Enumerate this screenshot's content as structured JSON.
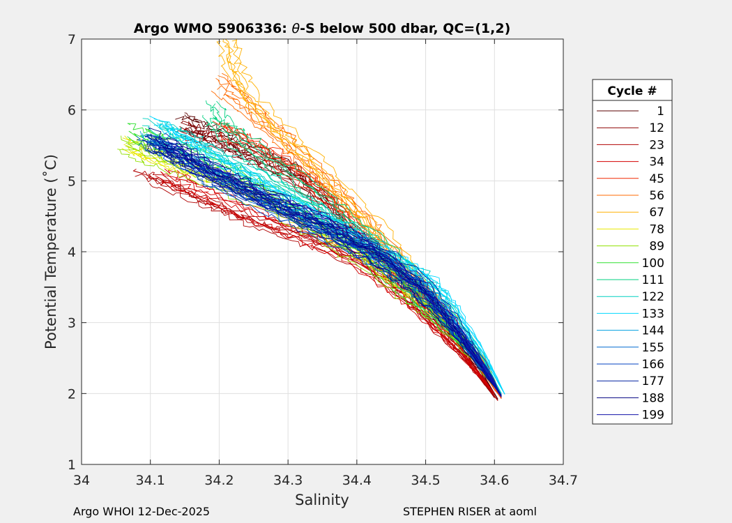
{
  "chart_data": {
    "type": "line",
    "title_prefix": "Argo WMO 5906336: ",
    "title_theta": "θ",
    "title_suffix": "-S below 500 dbar,  QC=(1,2)",
    "xlabel": "Salinity",
    "ylabel": "Potential Temperature (˚C)",
    "xlim": [
      34.0,
      34.7
    ],
    "ylim": [
      1,
      7
    ],
    "xticks": [
      34,
      34.1,
      34.2,
      34.3,
      34.4,
      34.5,
      34.6,
      34.7
    ],
    "xtick_labels": [
      "34",
      "34.1",
      "34.2",
      "34.3",
      "34.4",
      "34.5",
      "34.6",
      "34.7"
    ],
    "yticks": [
      1,
      2,
      3,
      4,
      5,
      6,
      7
    ],
    "ytick_labels": [
      "1",
      "2",
      "3",
      "4",
      "5",
      "6",
      "7"
    ],
    "grid": true,
    "legend_position": "outside-right",
    "legend_title": "Cycle #",
    "series": [
      {
        "name": "1",
        "color": "#5a0000",
        "points": [
          [
            34.15,
            5.82
          ],
          [
            34.17,
            5.72
          ],
          [
            34.2,
            5.6
          ],
          [
            34.23,
            5.45
          ],
          [
            34.27,
            5.28
          ],
          [
            34.31,
            5.1
          ],
          [
            34.36,
            4.68
          ],
          [
            34.42,
            3.98
          ],
          [
            34.48,
            3.45
          ],
          [
            34.53,
            2.95
          ],
          [
            34.57,
            2.45
          ],
          [
            34.605,
            1.92
          ]
        ]
      },
      {
        "name": "12",
        "color": "#8b0000",
        "points": [
          [
            34.14,
            5.78
          ],
          [
            34.17,
            5.66
          ],
          [
            34.21,
            5.52
          ],
          [
            34.25,
            5.36
          ],
          [
            34.29,
            5.18
          ],
          [
            34.34,
            4.78
          ],
          [
            34.41,
            4.02
          ],
          [
            34.47,
            3.5
          ],
          [
            34.52,
            3.0
          ],
          [
            34.56,
            2.5
          ],
          [
            34.6,
            1.94
          ]
        ]
      },
      {
        "name": "23",
        "color": "#b00000",
        "points": [
          [
            34.09,
            5.07
          ],
          [
            34.13,
            4.95
          ],
          [
            34.18,
            4.72
          ],
          [
            34.23,
            4.5
          ],
          [
            34.29,
            4.3
          ],
          [
            34.35,
            4.12
          ],
          [
            34.42,
            3.78
          ],
          [
            34.48,
            3.3
          ],
          [
            34.53,
            2.8
          ],
          [
            34.57,
            2.35
          ],
          [
            34.605,
            1.9
          ]
        ]
      },
      {
        "name": "34",
        "color": "#d40000",
        "points": [
          [
            34.12,
            5.1
          ],
          [
            34.16,
            4.92
          ],
          [
            34.21,
            4.7
          ],
          [
            34.27,
            4.45
          ],
          [
            34.33,
            4.2
          ],
          [
            34.39,
            3.95
          ],
          [
            34.45,
            3.55
          ],
          [
            34.5,
            3.1
          ],
          [
            34.55,
            2.6
          ],
          [
            34.6,
            2.0
          ]
        ]
      },
      {
        "name": "45",
        "color": "#f02800",
        "points": [
          [
            34.2,
            5.75
          ],
          [
            34.23,
            5.6
          ],
          [
            34.27,
            5.38
          ],
          [
            34.31,
            5.12
          ],
          [
            34.35,
            4.82
          ],
          [
            34.38,
            4.5
          ],
          [
            34.42,
            4.08
          ],
          [
            34.47,
            3.55
          ],
          [
            34.52,
            3.05
          ],
          [
            34.57,
            2.5
          ],
          [
            34.61,
            1.93
          ]
        ]
      },
      {
        "name": "56",
        "color": "#ff6a00",
        "points": [
          [
            34.2,
            6.35
          ],
          [
            34.23,
            6.1
          ],
          [
            34.27,
            5.75
          ],
          [
            34.31,
            5.4
          ],
          [
            34.35,
            5.0
          ],
          [
            34.39,
            4.6
          ],
          [
            34.43,
            4.18
          ],
          [
            34.48,
            3.6
          ],
          [
            34.53,
            3.08
          ],
          [
            34.57,
            2.55
          ],
          [
            34.61,
            1.94
          ]
        ]
      },
      {
        "name": "67",
        "color": "#ffb000",
        "points": [
          [
            34.21,
            7.0
          ],
          [
            34.22,
            6.6
          ],
          [
            34.24,
            6.2
          ],
          [
            34.28,
            5.75
          ],
          [
            34.33,
            5.3
          ],
          [
            34.38,
            4.8
          ],
          [
            34.43,
            4.28
          ],
          [
            34.48,
            3.7
          ],
          [
            34.53,
            3.1
          ],
          [
            34.58,
            2.55
          ],
          [
            34.61,
            1.96
          ]
        ]
      },
      {
        "name": "78",
        "color": "#e8e800",
        "points": [
          [
            34.07,
            5.5
          ],
          [
            34.1,
            5.38
          ],
          [
            34.15,
            5.22
          ],
          [
            34.21,
            5.02
          ],
          [
            34.27,
            4.75
          ],
          [
            34.33,
            4.42
          ],
          [
            34.4,
            4.05
          ],
          [
            34.46,
            3.6
          ],
          [
            34.52,
            3.1
          ],
          [
            34.57,
            2.55
          ],
          [
            34.61,
            1.97
          ]
        ]
      },
      {
        "name": "89",
        "color": "#90e000",
        "points": [
          [
            34.06,
            5.52
          ],
          [
            34.1,
            5.4
          ],
          [
            34.15,
            5.2
          ],
          [
            34.21,
            4.98
          ],
          [
            34.28,
            4.68
          ],
          [
            34.35,
            4.3
          ],
          [
            34.41,
            3.95
          ],
          [
            34.47,
            3.5
          ],
          [
            34.52,
            3.05
          ],
          [
            34.57,
            2.52
          ],
          [
            34.61,
            1.97
          ]
        ]
      },
      {
        "name": "100",
        "color": "#30e030",
        "points": [
          [
            34.08,
            5.7
          ],
          [
            34.12,
            5.58
          ],
          [
            34.17,
            5.4
          ],
          [
            34.22,
            5.15
          ],
          [
            34.28,
            4.82
          ],
          [
            34.34,
            4.45
          ],
          [
            34.41,
            4.05
          ],
          [
            34.47,
            3.58
          ],
          [
            34.52,
            3.1
          ],
          [
            34.57,
            2.55
          ],
          [
            34.61,
            1.98
          ]
        ]
      },
      {
        "name": "111",
        "color": "#00d080",
        "points": [
          [
            34.19,
            6.0
          ],
          [
            34.21,
            5.75
          ],
          [
            34.25,
            5.45
          ],
          [
            34.3,
            5.08
          ],
          [
            34.36,
            4.65
          ],
          [
            34.42,
            4.18
          ],
          [
            34.47,
            3.7
          ],
          [
            34.52,
            3.15
          ],
          [
            34.57,
            2.58
          ],
          [
            34.61,
            1.98
          ]
        ]
      },
      {
        "name": "122",
        "color": "#00d0c0",
        "points": [
          [
            34.1,
            5.75
          ],
          [
            34.14,
            5.6
          ],
          [
            34.19,
            5.38
          ],
          [
            34.25,
            5.05
          ],
          [
            34.31,
            4.72
          ],
          [
            34.37,
            4.38
          ],
          [
            34.43,
            4.02
          ],
          [
            34.49,
            3.62
          ],
          [
            34.53,
            3.2
          ],
          [
            34.57,
            2.65
          ],
          [
            34.61,
            2.0
          ]
        ]
      },
      {
        "name": "133",
        "color": "#00d8ff",
        "points": [
          [
            34.11,
            5.8
          ],
          [
            34.15,
            5.55
          ],
          [
            34.2,
            5.25
          ],
          [
            34.26,
            4.95
          ],
          [
            34.32,
            4.62
          ],
          [
            34.38,
            4.3
          ],
          [
            34.44,
            3.98
          ],
          [
            34.5,
            3.62
          ],
          [
            34.54,
            3.2
          ],
          [
            34.58,
            2.62
          ],
          [
            34.615,
            1.99
          ]
        ]
      },
      {
        "name": "144",
        "color": "#00a0e0",
        "points": [
          [
            34.1,
            5.65
          ],
          [
            34.14,
            5.45
          ],
          [
            34.19,
            5.18
          ],
          [
            34.25,
            4.9
          ],
          [
            34.31,
            4.6
          ],
          [
            34.37,
            4.3
          ],
          [
            34.43,
            4.0
          ],
          [
            34.49,
            3.6
          ],
          [
            34.53,
            3.18
          ],
          [
            34.57,
            2.6
          ],
          [
            34.61,
            1.98
          ]
        ]
      },
      {
        "name": "155",
        "color": "#0068d0",
        "points": [
          [
            34.09,
            5.6
          ],
          [
            34.13,
            5.42
          ],
          [
            34.18,
            5.1
          ],
          [
            34.24,
            4.82
          ],
          [
            34.3,
            4.55
          ],
          [
            34.36,
            4.28
          ],
          [
            34.42,
            3.98
          ],
          [
            34.48,
            3.55
          ],
          [
            34.53,
            3.1
          ],
          [
            34.57,
            2.55
          ],
          [
            34.61,
            1.98
          ]
        ]
      },
      {
        "name": "166",
        "color": "#0040c0",
        "points": [
          [
            34.1,
            5.55
          ],
          [
            34.14,
            5.35
          ],
          [
            34.19,
            5.05
          ],
          [
            34.25,
            4.75
          ],
          [
            34.31,
            4.48
          ],
          [
            34.37,
            4.2
          ],
          [
            34.43,
            3.92
          ],
          [
            34.49,
            3.5
          ],
          [
            34.53,
            3.05
          ],
          [
            34.57,
            2.52
          ],
          [
            34.61,
            1.97
          ]
        ]
      },
      {
        "name": "177",
        "color": "#0020a0",
        "points": [
          [
            34.11,
            5.6
          ],
          [
            34.15,
            5.38
          ],
          [
            34.2,
            5.1
          ],
          [
            34.26,
            4.82
          ],
          [
            34.32,
            4.55
          ],
          [
            34.38,
            4.25
          ],
          [
            34.44,
            3.92
          ],
          [
            34.5,
            3.48
          ],
          [
            34.54,
            3.0
          ],
          [
            34.58,
            2.48
          ],
          [
            34.61,
            1.96
          ]
        ]
      },
      {
        "name": "188",
        "color": "#000080",
        "points": [
          [
            34.1,
            5.62
          ],
          [
            34.14,
            5.42
          ],
          [
            34.19,
            5.15
          ],
          [
            34.25,
            4.88
          ],
          [
            34.31,
            4.6
          ],
          [
            34.37,
            4.32
          ],
          [
            34.43,
            4.0
          ],
          [
            34.49,
            3.55
          ],
          [
            34.53,
            3.08
          ],
          [
            34.57,
            2.55
          ],
          [
            34.61,
            1.97
          ]
        ]
      },
      {
        "name": "199",
        "color": "#1010a8",
        "points": [
          [
            34.12,
            5.5
          ],
          [
            34.16,
            5.3
          ],
          [
            34.21,
            5.02
          ],
          [
            34.27,
            4.75
          ],
          [
            34.33,
            4.5
          ],
          [
            34.39,
            4.22
          ],
          [
            34.45,
            3.9
          ],
          [
            34.5,
            3.45
          ],
          [
            34.54,
            3.0
          ],
          [
            34.58,
            2.45
          ],
          [
            34.61,
            1.95
          ]
        ]
      }
    ]
  },
  "footer": {
    "left": "Argo WHOI 12-Dec-2025",
    "right": "STEPHEN RISER at aoml"
  }
}
